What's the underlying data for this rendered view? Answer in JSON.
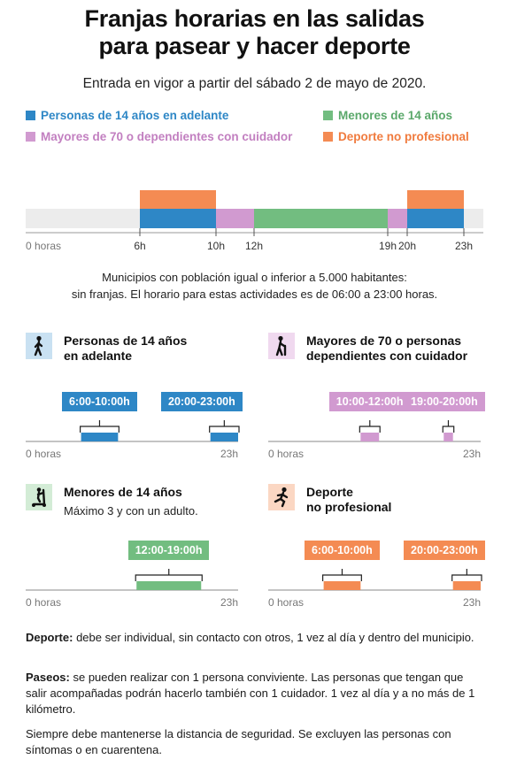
{
  "header": {
    "title_line1": "Franjas horarias en las salidas",
    "title_line2": "para pasear y hacer deporte",
    "subtitle": "Entrada en vigor a partir del sábado 2 de mayo de 2020."
  },
  "colors": {
    "adults": "#2e87c6",
    "elderly": "#d19ad0",
    "children": "#72bd80",
    "sport": "#f48b53",
    "track": "#ececec"
  },
  "legend": [
    {
      "label": "Personas de 14 años en adelante",
      "color": "#2e87c6",
      "text_color": "#2e87c6"
    },
    {
      "label": "Menores de 14 años",
      "color": "#72bd80",
      "text_color": "#5aa86a"
    },
    {
      "label": "Mayores de 70 o dependientes con cuidador",
      "color": "#d19ad0",
      "text_color": "#c27fc0"
    },
    {
      "label": "Deporte no profesional",
      "color": "#f48b53",
      "text_color": "#f07b3e"
    }
  ],
  "chart_data": [
    {
      "type": "bar",
      "subtype": "timeline",
      "xlim": [
        0,
        23
      ],
      "x_ticks": [
        "0 horas",
        "6h",
        "10h",
        "12h",
        "19h",
        "20h",
        "23h"
      ],
      "series": [
        {
          "name": "Personas de 14 años en adelante",
          "intervals": [
            [
              6,
              10
            ],
            [
              20,
              23
            ]
          ]
        },
        {
          "name": "Mayores de 70 o dependientes con cuidador",
          "intervals": [
            [
              10,
              12
            ],
            [
              19,
              20
            ]
          ]
        },
        {
          "name": "Menores de 14 años",
          "intervals": [
            [
              12,
              19
            ]
          ]
        },
        {
          "name": "Deporte no profesional",
          "intervals": [
            [
              6,
              10
            ],
            [
              20,
              23
            ]
          ]
        }
      ]
    },
    {
      "type": "bar",
      "subtype": "timeline",
      "xlim": [
        0,
        23
      ],
      "x_ticks": [
        "0 horas",
        "23h"
      ],
      "series": [
        {
          "name": "Personas de 14 años en adelante",
          "intervals": [
            [
              6,
              10
            ],
            [
              20,
              23
            ]
          ],
          "labels": [
            "6:00-10:00h",
            "20:00-23:00h"
          ]
        }
      ]
    },
    {
      "type": "bar",
      "subtype": "timeline",
      "xlim": [
        0,
        23
      ],
      "x_ticks": [
        "0 horas",
        "23h"
      ],
      "series": [
        {
          "name": "Mayores de 70 o personas dependientes con cuidador",
          "intervals": [
            [
              10,
              12
            ],
            [
              19,
              20
            ]
          ],
          "labels": [
            "10:00-12:00h",
            "19:00-20:00h"
          ]
        }
      ]
    },
    {
      "type": "bar",
      "subtype": "timeline",
      "xlim": [
        0,
        23
      ],
      "x_ticks": [
        "0 horas",
        "23h"
      ],
      "series": [
        {
          "name": "Menores de 14 años",
          "intervals": [
            [
              12,
              19
            ]
          ],
          "labels": [
            "12:00-19:00h"
          ]
        }
      ]
    },
    {
      "type": "bar",
      "subtype": "timeline",
      "xlim": [
        0,
        23
      ],
      "x_ticks": [
        "0 horas",
        "23h"
      ],
      "series": [
        {
          "name": "Deporte no profesional",
          "intervals": [
            [
              6,
              10
            ],
            [
              20,
              23
            ]
          ],
          "labels": [
            "6:00-10:00h",
            "20:00-23:00h"
          ]
        }
      ]
    }
  ],
  "main_chart": {
    "ticks": [
      {
        "label": "0 horas",
        "hour": 0,
        "gray": true
      },
      {
        "label": "6h",
        "hour": 6,
        "gray": false
      },
      {
        "label": "10h",
        "hour": 10,
        "gray": false
      },
      {
        "label": "12h",
        "hour": 12,
        "gray": false
      },
      {
        "label": "19h",
        "hour": 19,
        "gray": false
      },
      {
        "label": "20h",
        "hour": 20,
        "gray": false
      },
      {
        "label": "23h",
        "hour": 23,
        "gray": false
      }
    ]
  },
  "note": {
    "line1": "Municipios con población igual o inferior a 5.000 habitantes:",
    "line2": "sin franjas. El horario para estas actividades es de 06:00 a 23:00 horas."
  },
  "panels": [
    {
      "title_line1": "Personas de 14 años",
      "title_line2": "en adelante",
      "sub": "",
      "icon": "walking-person-icon",
      "color": "#2e87c6",
      "icon_bg": "#c9e1f2",
      "intervals": [
        [
          6,
          10
        ],
        [
          20,
          23
        ]
      ],
      "labels": [
        "6:00-10:00h",
        "20:00-23:00h"
      ],
      "start_label": "0 horas",
      "end_label": "23h"
    },
    {
      "title_line1": "Mayores de 70 o personas",
      "title_line2": "dependientes con cuidador",
      "sub": "",
      "icon": "elderly-cane-icon",
      "color": "#d19ad0",
      "icon_bg": "#f0d9ef",
      "intervals": [
        [
          10,
          12
        ],
        [
          19,
          20
        ]
      ],
      "labels": [
        "10:00-12:00h",
        "19:00-20:00h"
      ],
      "start_label": "0 horas",
      "end_label": "23h"
    },
    {
      "title_line1": "Menores de 14 años",
      "title_line2": "",
      "sub": "Máximo 3 y con un adulto.",
      "icon": "child-scooter-icon",
      "color": "#72bd80",
      "icon_bg": "#d3ecd6",
      "intervals": [
        [
          12,
          19
        ]
      ],
      "labels": [
        "12:00-19:00h"
      ],
      "start_label": "0 horas",
      "end_label": "23h"
    },
    {
      "title_line1": "Deporte",
      "title_line2": "no profesional",
      "sub": "",
      "icon": "runner-icon",
      "color": "#f48b53",
      "icon_bg": "#fbd7c3",
      "intervals": [
        [
          6,
          10
        ],
        [
          20,
          23
        ]
      ],
      "labels": [
        "6:00-10:00h",
        "20:00-23:00h"
      ],
      "start_label": "0 horas",
      "end_label": "23h"
    }
  ],
  "footer": {
    "deporte_label": "Deporte:",
    "deporte_text": " debe ser individual, sin contacto con otros, 1 vez al día y dentro del municipio.",
    "paseos_label": "Paseos:",
    "paseos_text": " se pueden realizar con 1 persona conviviente. Las personas que tengan que salir acompañadas podrán hacerlo también con 1 cuidador. 1 vez al día y a no más de 1 kilómetro.",
    "safety_text": "Siempre debe mantenerse la distancia de seguridad. Se excluyen las personas con síntomas o en cuarentena."
  }
}
